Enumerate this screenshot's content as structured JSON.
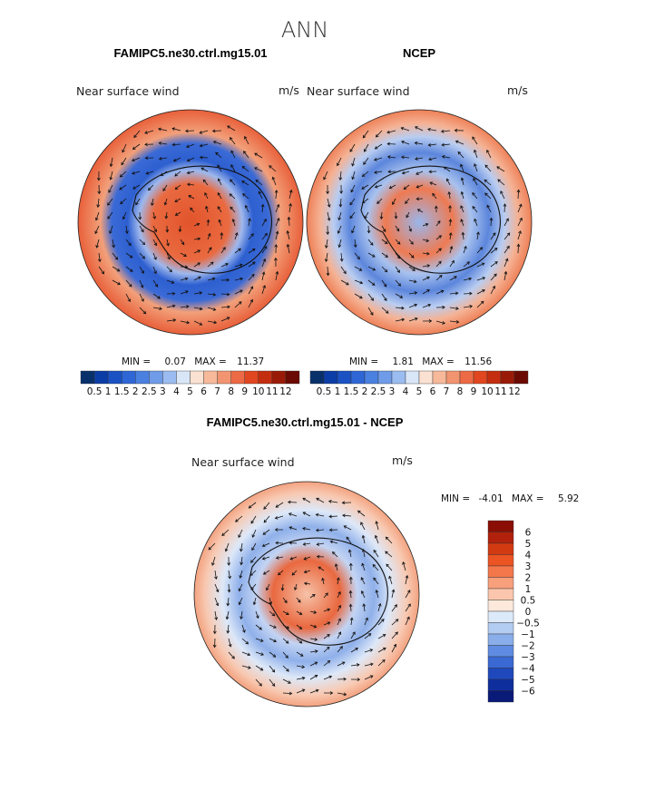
{
  "figure_title": "ANN",
  "chart_data": [
    {
      "type": "heatmap",
      "subtype": "polar-stereographic-vector-map",
      "title": "FAMIPC5.ne30.ctrl.mg15.01",
      "field_label": "Near surface wind",
      "units": "m/s",
      "stats": {
        "min_label": "MIN =",
        "min": "0.07",
        "max_label": "MAX =",
        "max": "11.37"
      },
      "colorbar": {
        "orientation": "horizontal",
        "levels": [
          "0.5",
          "1",
          "1.5",
          "2",
          "2.5",
          "3",
          "4",
          "5",
          "6",
          "7",
          "8",
          "9",
          "10",
          "11",
          "12"
        ],
        "colors": [
          "#08306b",
          "#0c3da6",
          "#1a52c4",
          "#2f66d6",
          "#4a80e0",
          "#6f9be8",
          "#9bbcf0",
          "#d8e6f8",
          "#fbe1d2",
          "#f7b99a",
          "#f29470",
          "#ec6a45",
          "#e0461f",
          "#c42d0f",
          "#9a1a08",
          "#6b0a02"
        ]
      }
    },
    {
      "type": "heatmap",
      "subtype": "polar-stereographic-vector-map",
      "title": "NCEP",
      "field_label": "Near surface wind",
      "units": "m/s",
      "stats": {
        "min_label": "MIN =",
        "min": "1.81",
        "max_label": "MAX =",
        "max": "11.56"
      },
      "colorbar": {
        "orientation": "horizontal",
        "levels": [
          "0.5",
          "1",
          "1.5",
          "2",
          "2.5",
          "3",
          "4",
          "5",
          "6",
          "7",
          "8",
          "9",
          "10",
          "11",
          "12"
        ],
        "colors": [
          "#08306b",
          "#0c3da6",
          "#1a52c4",
          "#2f66d6",
          "#4a80e0",
          "#6f9be8",
          "#9bbcf0",
          "#d8e6f8",
          "#fbe1d2",
          "#f7b99a",
          "#f29470",
          "#ec6a45",
          "#e0461f",
          "#c42d0f",
          "#9a1a08",
          "#6b0a02"
        ]
      }
    },
    {
      "type": "heatmap",
      "subtype": "polar-stereographic-vector-map",
      "title": "FAMIPC5.ne30.ctrl.mg15.01 - NCEP",
      "field_label": "Near surface wind",
      "units": "m/s",
      "stats": {
        "min_label": "MIN =",
        "min": "-4.01",
        "max_label": "MAX =",
        "max": "5.92"
      },
      "colorbar": {
        "orientation": "vertical",
        "levels": [
          "6",
          "5",
          "4",
          "3",
          "2",
          "1",
          "0.5",
          "0",
          "−0.5",
          "−1",
          "−2",
          "−3",
          "−4",
          "−5",
          "−6"
        ],
        "colors": [
          "#8a0e04",
          "#b2210b",
          "#d23a12",
          "#ec5424",
          "#f4774c",
          "#f89f7b",
          "#fbc6ad",
          "#fde9dc",
          "#dce9f8",
          "#b3ccf1",
          "#8aaeea",
          "#5f8ce2",
          "#3a69d4",
          "#1f48bd",
          "#0f2e9e",
          "#0a1a78"
        ]
      }
    }
  ]
}
